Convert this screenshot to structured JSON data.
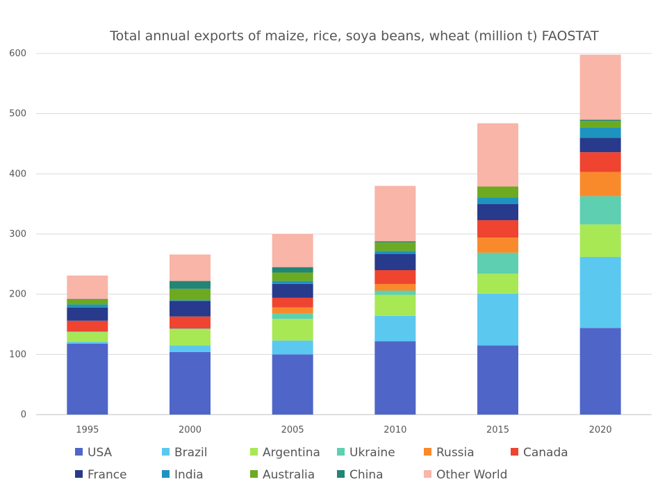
{
  "chart_data": {
    "type": "bar",
    "stacked": true,
    "title": "Total annual exports of maize, rice, soya beans, wheat (million t) FAOSTAT",
    "xlabel": "",
    "ylabel": "",
    "ylim": [
      0,
      600
    ],
    "yticks": [
      0,
      100,
      200,
      300,
      400,
      500,
      600
    ],
    "grid": true,
    "legend_position": "bottom",
    "categories": [
      "1995",
      "2000",
      "2005",
      "2010",
      "2015",
      "2020"
    ],
    "series": [
      {
        "name": "USA",
        "color": "#4F66C8",
        "values": [
          118,
          104,
          100,
          122,
          115,
          144
        ]
      },
      {
        "name": "Brazil",
        "color": "#5BC8F0",
        "values": [
          3,
          11,
          23,
          42,
          86,
          118
        ]
      },
      {
        "name": "Argentina",
        "color": "#A8E855",
        "values": [
          16,
          27,
          36,
          35,
          33,
          54
        ]
      },
      {
        "name": "Ukraine",
        "color": "#5ECFB0",
        "values": [
          1,
          1,
          9,
          7,
          35,
          47
        ]
      },
      {
        "name": "Russia",
        "color": "#F98A2C",
        "values": [
          0,
          0,
          10,
          11,
          25,
          40
        ]
      },
      {
        "name": "Canada",
        "color": "#EE4430",
        "values": [
          18,
          20,
          16,
          23,
          29,
          33
        ]
      },
      {
        "name": "France",
        "color": "#273A8C",
        "values": [
          22,
          26,
          23,
          27,
          27,
          24
        ]
      },
      {
        "name": "India",
        "color": "#1E93C0",
        "values": [
          5,
          1,
          5,
          5,
          11,
          17
        ]
      },
      {
        "name": "Australia",
        "color": "#6DAA22",
        "values": [
          8,
          19,
          14,
          14,
          18,
          11
        ]
      },
      {
        "name": "China",
        "color": "#228575",
        "values": [
          1,
          13,
          9,
          2,
          0,
          2
        ]
      },
      {
        "name": "Other World",
        "color": "#F8B5A8",
        "values": [
          39,
          44,
          55,
          92,
          105,
          108
        ]
      }
    ]
  }
}
